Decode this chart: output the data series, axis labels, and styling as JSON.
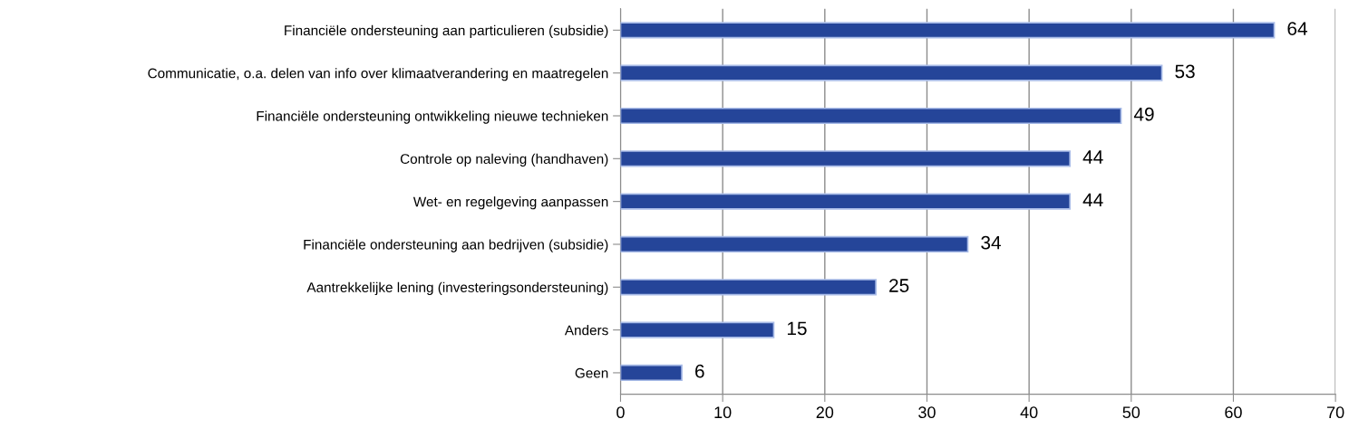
{
  "chart_data": {
    "type": "bar",
    "orientation": "horizontal",
    "categories": [
      "Financiële ondersteuning aan particulieren (subsidie)",
      "Communicatie, o.a. delen van info over klimaatverandering en maatregelen",
      "Financiële ondersteuning ontwikkeling nieuwe technieken",
      "Controle op naleving (handhaven)",
      "Wet- en regelgeving aanpassen",
      "Financiële ondersteuning aan bedrijven (subsidie)",
      "Aantrekkelijke lening (investeringsondersteuning)",
      "Anders",
      "Geen"
    ],
    "values": [
      64,
      53,
      49,
      44,
      44,
      34,
      25,
      15,
      6
    ],
    "color": "#254599",
    "xlim": [
      0,
      70
    ],
    "xticks": [
      0,
      10,
      20,
      30,
      40,
      50,
      60,
      70
    ],
    "grid": "x",
    "data_labels": true
  }
}
